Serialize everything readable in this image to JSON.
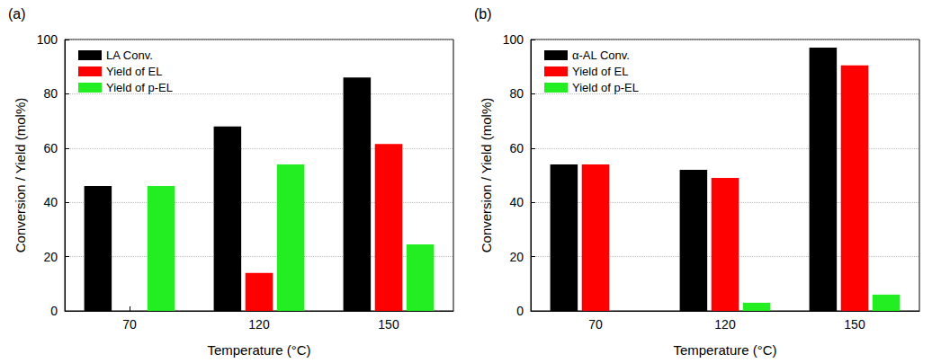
{
  "chart_data": [
    {
      "type": "bar",
      "title": "(a)",
      "categories": [
        "70",
        "120",
        "150"
      ],
      "x_label": "Temperature (°C)",
      "y_label": "Conversion / Yield (mol%)",
      "series": [
        {
          "name": "LA Conv.",
          "color": "#000000",
          "values": [
            46,
            68,
            86
          ]
        },
        {
          "name": "Yield of EL",
          "color": "#ff0000",
          "values": [
            0,
            14,
            61.5
          ]
        },
        {
          "name": "Yield of p-EL",
          "color": "#22ee22",
          "values": [
            46,
            54,
            24.5
          ]
        }
      ],
      "ylim": [
        0,
        100
      ],
      "yticks": [
        0,
        20,
        40,
        60,
        80,
        100
      ],
      "grid": true,
      "legend": "upper left"
    },
    {
      "type": "bar",
      "title": "(b)",
      "categories": [
        "70",
        "120",
        "150"
      ],
      "x_label": "Temperature (°C)",
      "y_label": "Conversion / Yield (mol%)",
      "series": [
        {
          "name": "α-AL Conv.",
          "color": "#000000",
          "values": [
            54,
            52,
            97
          ]
        },
        {
          "name": "Yield of EL",
          "color": "#ff0000",
          "values": [
            54,
            49,
            90.5
          ]
        },
        {
          "name": "Yield of p-EL",
          "color": "#22ee22",
          "values": [
            0,
            3,
            6
          ]
        }
      ],
      "ylim": [
        0,
        100
      ],
      "yticks": [
        0,
        20,
        40,
        60,
        80,
        100
      ],
      "grid": true,
      "legend": "upper left"
    }
  ]
}
